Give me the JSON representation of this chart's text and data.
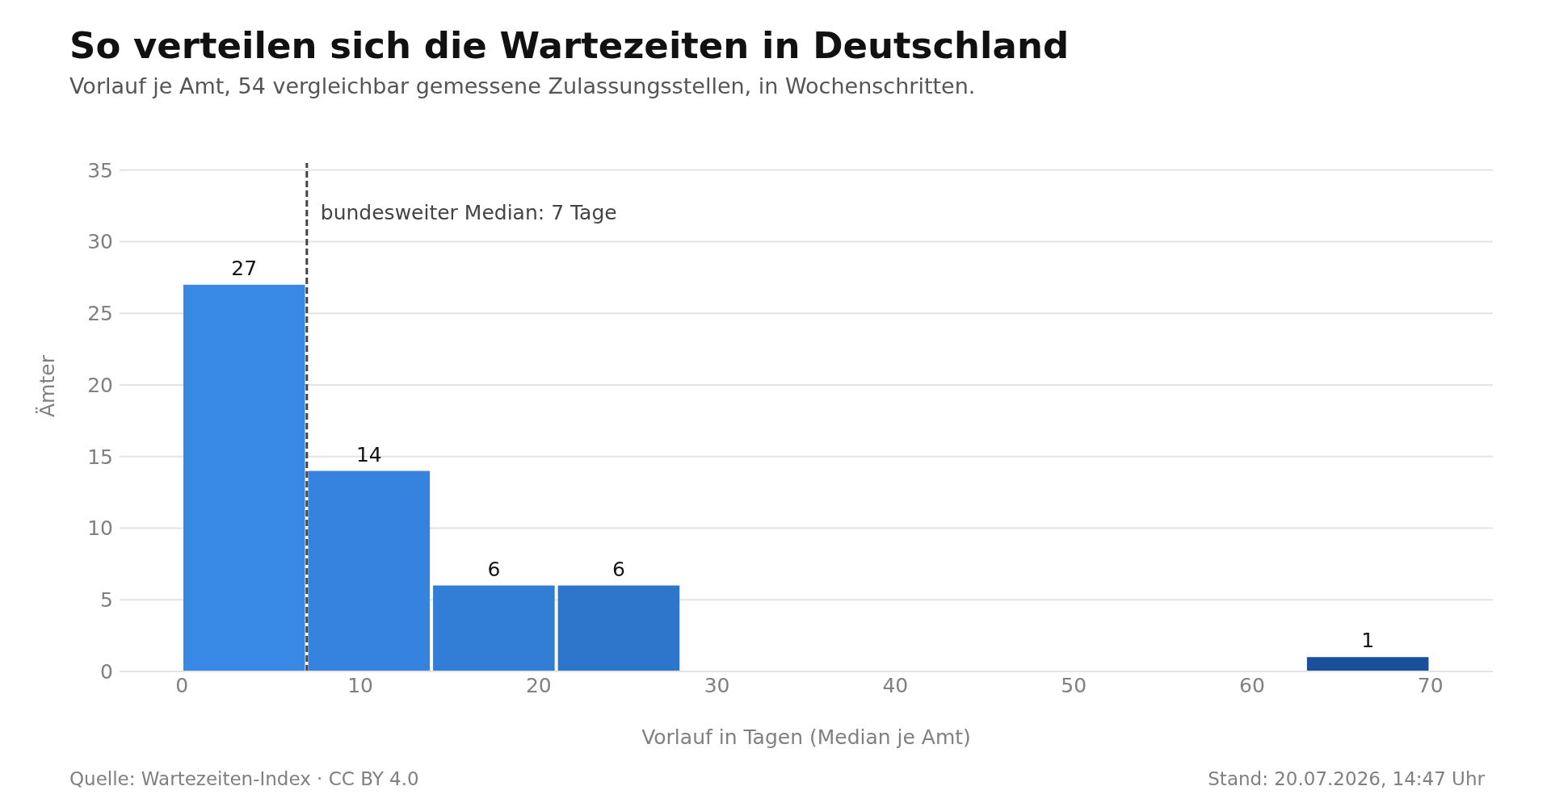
{
  "chart_data": {
    "type": "histogram",
    "title": "So verteilen sich die Wartezeiten in Deutschland",
    "subtitle": "Vorlauf je Amt, 54 vergleichbar gemessene Zulassungsstellen, in Wochenschritten.",
    "xlabel": "Vorlauf in Tagen (Median je Amt)",
    "ylabel": "Ämter",
    "bins": [
      0,
      7,
      14,
      21,
      28,
      35,
      42,
      49,
      56,
      63,
      70
    ],
    "values": [
      27,
      14,
      6,
      6,
      0,
      0,
      0,
      0,
      0,
      1
    ],
    "colors": [
      "#3888e6",
      "#3682df",
      "#327dd6",
      "#2e75cc",
      "#2a6cbf",
      "#2664b4",
      "#225ca9",
      "#1f57a3",
      "#1c529f",
      "#1a4f9c"
    ],
    "xlim": [
      -3.5,
      73.5
    ],
    "xticks": [
      0,
      10,
      20,
      30,
      40,
      50,
      60,
      70
    ],
    "ylim": [
      0,
      35.5
    ],
    "yticks": [
      0,
      5,
      10,
      15,
      20,
      25,
      30,
      35
    ],
    "grid": "y",
    "value_labels": [
      "27",
      "14",
      "6",
      "6",
      null,
      null,
      null,
      null,
      null,
      "1"
    ],
    "ref_lines": [
      {
        "axis": "x",
        "value": 7,
        "label": "bundesweiter Median: 7 Tage",
        "line_style": "dashed",
        "color": "#444444"
      }
    ],
    "annotations": [
      "Quelle: Wartezeiten-Index · CC BY 4.0",
      "Stand: 20.07.2026, 14:47 Uhr"
    ]
  }
}
